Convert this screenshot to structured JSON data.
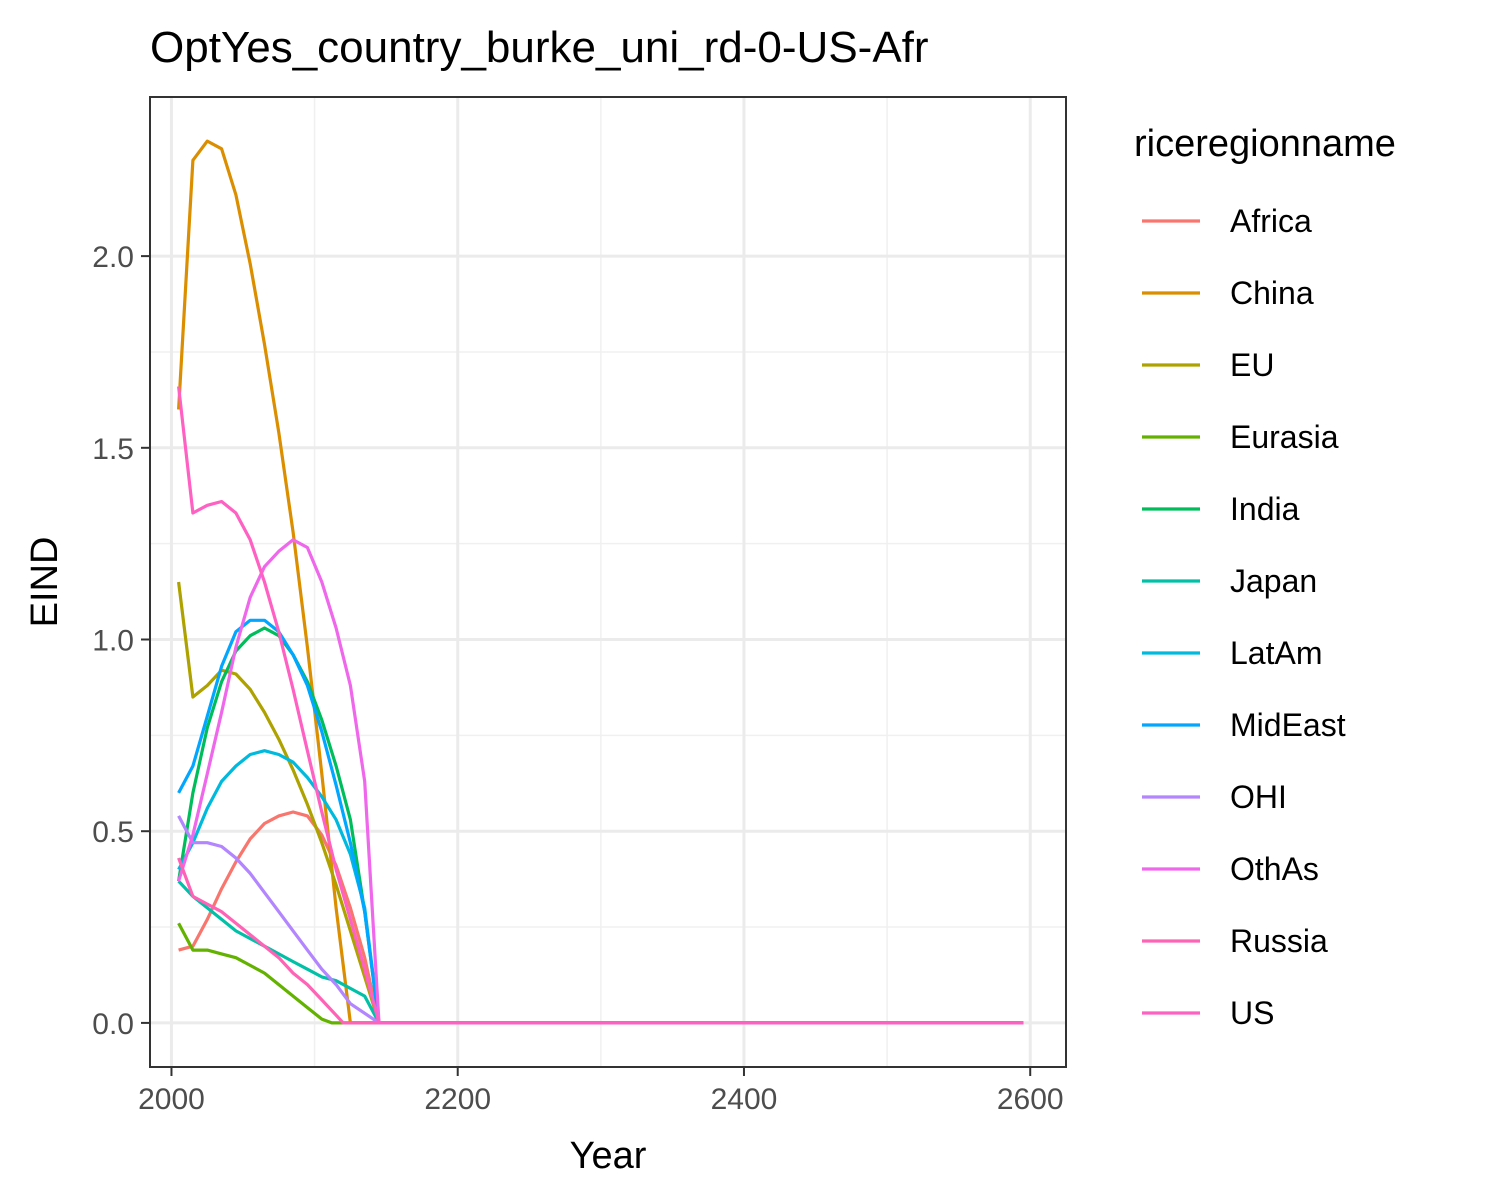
{
  "chart_data": {
    "type": "line",
    "title": "OptYes_country_burke_uni_rd-0-US-Afr",
    "xlabel": "Year",
    "ylabel": "EIND",
    "xlim": [
      1985,
      2625
    ],
    "ylim": [
      -0.115,
      2.415
    ],
    "x_ticks": [
      2000,
      2200,
      2400,
      2600
    ],
    "y_ticks": [
      0.0,
      0.5,
      1.0,
      1.5,
      2.0
    ],
    "x_tick_labels": [
      "2000",
      "2200",
      "2400",
      "2600"
    ],
    "y_tick_labels": [
      "0.0",
      "0.5",
      "1.0",
      "1.5",
      "2.0"
    ],
    "grid": true,
    "legend": {
      "title": "riceregionname",
      "placement": "right"
    },
    "x_extent": [
      2005,
      2595
    ],
    "series": [
      {
        "name": "Africa",
        "color": "#F8766D",
        "values": [
          [
            2005,
            0.19
          ],
          [
            2015,
            0.2
          ],
          [
            2025,
            0.27
          ],
          [
            2035,
            0.35
          ],
          [
            2045,
            0.42
          ],
          [
            2055,
            0.48
          ],
          [
            2065,
            0.52
          ],
          [
            2075,
            0.54
          ],
          [
            2085,
            0.55
          ],
          [
            2095,
            0.54
          ],
          [
            2105,
            0.49
          ],
          [
            2115,
            0.41
          ],
          [
            2125,
            0.3
          ],
          [
            2135,
            0.17
          ],
          [
            2145,
            0.0
          ],
          [
            2595,
            0.0
          ]
        ]
      },
      {
        "name": "China",
        "color": "#DB8E00",
        "values": [
          [
            2005,
            1.6
          ],
          [
            2015,
            2.25
          ],
          [
            2025,
            2.3
          ],
          [
            2035,
            2.28
          ],
          [
            2045,
            2.16
          ],
          [
            2055,
            1.98
          ],
          [
            2065,
            1.77
          ],
          [
            2075,
            1.54
          ],
          [
            2085,
            1.28
          ],
          [
            2095,
            0.98
          ],
          [
            2105,
            0.65
          ],
          [
            2115,
            0.3
          ],
          [
            2125,
            0.0
          ],
          [
            2595,
            0.0
          ]
        ]
      },
      {
        "name": "EU",
        "color": "#AEA200",
        "values": [
          [
            2005,
            1.15
          ],
          [
            2015,
            0.85
          ],
          [
            2025,
            0.88
          ],
          [
            2035,
            0.92
          ],
          [
            2045,
            0.91
          ],
          [
            2055,
            0.87
          ],
          [
            2065,
            0.81
          ],
          [
            2075,
            0.74
          ],
          [
            2085,
            0.66
          ],
          [
            2095,
            0.57
          ],
          [
            2105,
            0.47
          ],
          [
            2115,
            0.36
          ],
          [
            2125,
            0.24
          ],
          [
            2135,
            0.12
          ],
          [
            2145,
            0.0
          ],
          [
            2595,
            0.0
          ]
        ]
      },
      {
        "name": "Eurasia",
        "color": "#64B200",
        "values": [
          [
            2005,
            0.26
          ],
          [
            2015,
            0.19
          ],
          [
            2025,
            0.19
          ],
          [
            2035,
            0.18
          ],
          [
            2045,
            0.17
          ],
          [
            2055,
            0.15
          ],
          [
            2065,
            0.13
          ],
          [
            2075,
            0.1
          ],
          [
            2085,
            0.07
          ],
          [
            2095,
            0.04
          ],
          [
            2105,
            0.01
          ],
          [
            2112,
            0.0
          ],
          [
            2595,
            0.0
          ]
        ]
      },
      {
        "name": "India",
        "color": "#00BD5C",
        "values": [
          [
            2005,
            0.37
          ],
          [
            2015,
            0.6
          ],
          [
            2025,
            0.77
          ],
          [
            2035,
            0.89
          ],
          [
            2045,
            0.97
          ],
          [
            2055,
            1.01
          ],
          [
            2065,
            1.03
          ],
          [
            2075,
            1.01
          ],
          [
            2085,
            0.96
          ],
          [
            2095,
            0.89
          ],
          [
            2105,
            0.79
          ],
          [
            2115,
            0.67
          ],
          [
            2125,
            0.53
          ],
          [
            2135,
            0.29
          ],
          [
            2145,
            0.0
          ],
          [
            2595,
            0.0
          ]
        ]
      },
      {
        "name": "Japan",
        "color": "#00C1A7",
        "values": [
          [
            2005,
            0.37
          ],
          [
            2015,
            0.33
          ],
          [
            2025,
            0.3
          ],
          [
            2035,
            0.27
          ],
          [
            2045,
            0.24
          ],
          [
            2055,
            0.22
          ],
          [
            2065,
            0.2
          ],
          [
            2075,
            0.18
          ],
          [
            2085,
            0.16
          ],
          [
            2095,
            0.14
          ],
          [
            2105,
            0.12
          ],
          [
            2115,
            0.11
          ],
          [
            2125,
            0.09
          ],
          [
            2135,
            0.07
          ],
          [
            2145,
            0.0
          ],
          [
            2595,
            0.0
          ]
        ]
      },
      {
        "name": "LatAm",
        "color": "#00BADE",
        "values": [
          [
            2005,
            0.4
          ],
          [
            2015,
            0.47
          ],
          [
            2025,
            0.56
          ],
          [
            2035,
            0.63
          ],
          [
            2045,
            0.67
          ],
          [
            2055,
            0.7
          ],
          [
            2065,
            0.71
          ],
          [
            2075,
            0.7
          ],
          [
            2085,
            0.68
          ],
          [
            2095,
            0.64
          ],
          [
            2105,
            0.59
          ],
          [
            2115,
            0.53
          ],
          [
            2125,
            0.44
          ],
          [
            2135,
            0.3
          ],
          [
            2145,
            0.0
          ],
          [
            2595,
            0.0
          ]
        ]
      },
      {
        "name": "MidEast",
        "color": "#00A6FF",
        "values": [
          [
            2005,
            0.6
          ],
          [
            2015,
            0.67
          ],
          [
            2025,
            0.8
          ],
          [
            2035,
            0.93
          ],
          [
            2045,
            1.02
          ],
          [
            2055,
            1.05
          ],
          [
            2065,
            1.05
          ],
          [
            2075,
            1.02
          ],
          [
            2085,
            0.96
          ],
          [
            2095,
            0.88
          ],
          [
            2105,
            0.76
          ],
          [
            2115,
            0.62
          ],
          [
            2125,
            0.47
          ],
          [
            2135,
            0.29
          ],
          [
            2145,
            0.0
          ],
          [
            2595,
            0.0
          ]
        ]
      },
      {
        "name": "OHI",
        "color": "#B385FF",
        "values": [
          [
            2005,
            0.54
          ],
          [
            2015,
            0.47
          ],
          [
            2025,
            0.47
          ],
          [
            2035,
            0.46
          ],
          [
            2045,
            0.43
          ],
          [
            2055,
            0.39
          ],
          [
            2065,
            0.34
          ],
          [
            2075,
            0.29
          ],
          [
            2085,
            0.24
          ],
          [
            2095,
            0.19
          ],
          [
            2105,
            0.14
          ],
          [
            2115,
            0.1
          ],
          [
            2125,
            0.05
          ],
          [
            2145,
            0.0
          ],
          [
            2595,
            0.0
          ]
        ]
      },
      {
        "name": "OthAs",
        "color": "#EF67EB",
        "values": [
          [
            2005,
            0.37
          ],
          [
            2015,
            0.49
          ],
          [
            2025,
            0.65
          ],
          [
            2035,
            0.81
          ],
          [
            2045,
            0.98
          ],
          [
            2055,
            1.11
          ],
          [
            2065,
            1.19
          ],
          [
            2075,
            1.23
          ],
          [
            2085,
            1.26
          ],
          [
            2095,
            1.24
          ],
          [
            2105,
            1.15
          ],
          [
            2115,
            1.03
          ],
          [
            2125,
            0.88
          ],
          [
            2135,
            0.63
          ],
          [
            2145,
            0.0
          ],
          [
            2595,
            0.0
          ]
        ]
      },
      {
        "name": "Russia",
        "color": "#FF63B6",
        "values": [
          [
            2005,
            0.43
          ],
          [
            2015,
            0.33
          ],
          [
            2025,
            0.31
          ],
          [
            2035,
            0.29
          ],
          [
            2045,
            0.26
          ],
          [
            2055,
            0.23
          ],
          [
            2065,
            0.2
          ],
          [
            2075,
            0.17
          ],
          [
            2085,
            0.13
          ],
          [
            2095,
            0.1
          ],
          [
            2105,
            0.06
          ],
          [
            2115,
            0.02
          ],
          [
            2120,
            0.0
          ],
          [
            2595,
            0.0
          ]
        ]
      },
      {
        "name": "US",
        "color": "#FF61C3",
        "values": [
          [
            2005,
            1.66
          ],
          [
            2015,
            1.33
          ],
          [
            2025,
            1.35
          ],
          [
            2035,
            1.36
          ],
          [
            2045,
            1.33
          ],
          [
            2055,
            1.26
          ],
          [
            2065,
            1.15
          ],
          [
            2075,
            1.02
          ],
          [
            2085,
            0.87
          ],
          [
            2095,
            0.71
          ],
          [
            2105,
            0.55
          ],
          [
            2115,
            0.4
          ],
          [
            2125,
            0.27
          ],
          [
            2135,
            0.14
          ],
          [
            2145,
            0.0
          ],
          [
            2595,
            0.0
          ]
        ]
      }
    ]
  }
}
